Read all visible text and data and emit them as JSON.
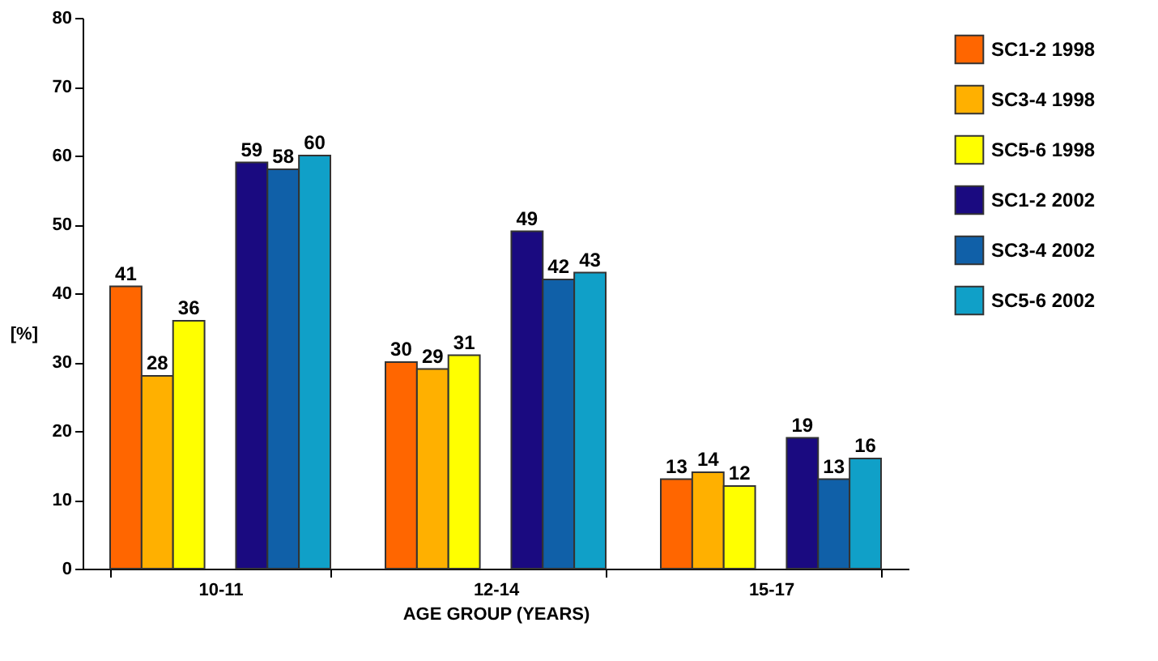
{
  "chart_data": {
    "type": "bar",
    "xlabel": "AGE GROUP (YEARS)",
    "ylabel": "[%]",
    "categories": [
      "10-11",
      "12-14",
      "15-17"
    ],
    "series": [
      {
        "name": "SC1-2 1998",
        "color": "#ff6600",
        "values": [
          41,
          30,
          13
        ]
      },
      {
        "name": "SC3-4 1998",
        "color": "#ffb000",
        "values": [
          28,
          29,
          14
        ]
      },
      {
        "name": "SC5-6 1998",
        "color": "#ffff00",
        "values": [
          36,
          31,
          12
        ]
      },
      {
        "name": "SC1-2 2002",
        "color": "#1a0a80",
        "values": [
          59,
          49,
          19
        ]
      },
      {
        "name": "SC3-4 2002",
        "color": "#1060a8",
        "values": [
          58,
          42,
          13
        ]
      },
      {
        "name": "SC5-6 2002",
        "color": "#10a0c8",
        "values": [
          60,
          43,
          16
        ]
      }
    ],
    "ylim": [
      0,
      80
    ],
    "yticks": [
      0,
      10,
      20,
      30,
      40,
      50,
      60,
      70,
      80
    ],
    "data_labels": true,
    "grid": false,
    "legend": "right"
  }
}
